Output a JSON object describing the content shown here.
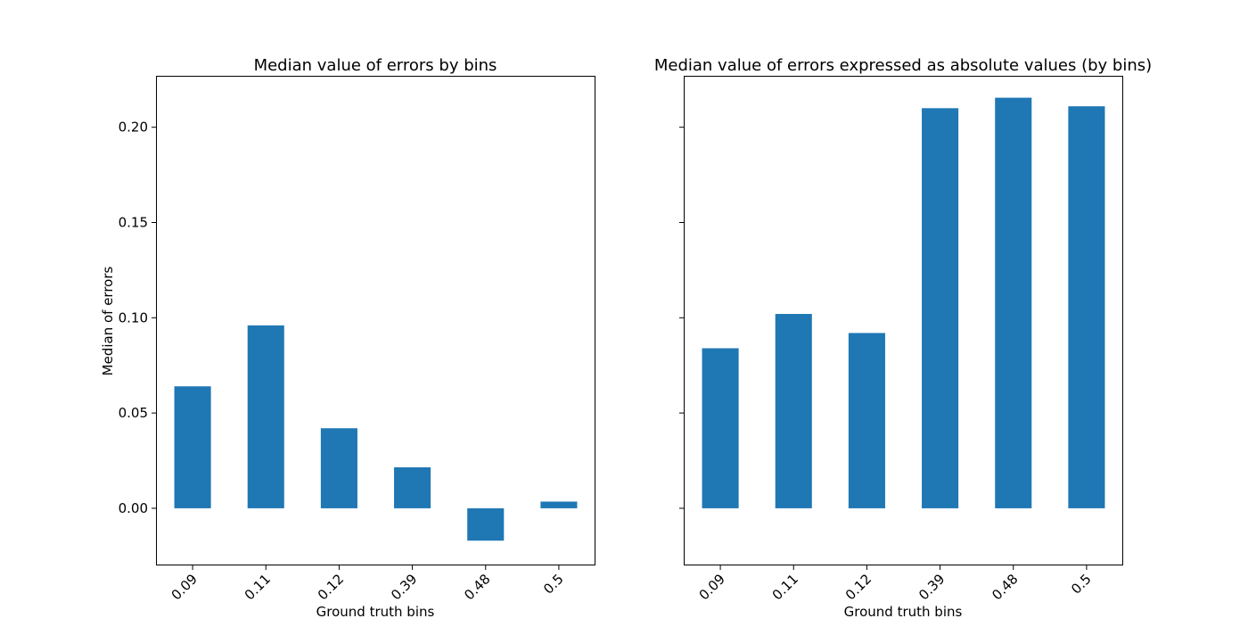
{
  "colors": {
    "bar": "#1f77b4",
    "axes": "#000000",
    "background": "#ffffff"
  },
  "chart_data": [
    {
      "type": "bar",
      "title": "Median value of errors by bins",
      "xlabel": "Ground truth bins",
      "ylabel": "Median of errors",
      "categories": [
        "0.09",
        "0.11",
        "0.12",
        "0.39",
        "0.48",
        "0.5"
      ],
      "values": [
        0.064,
        0.096,
        0.042,
        0.0215,
        -0.017,
        0.0035
      ],
      "ylim": [
        -0.03,
        0.227
      ],
      "yticks": [
        0.0,
        0.05,
        0.1,
        0.15,
        0.2
      ],
      "ytick_labels": [
        "0.00",
        "0.05",
        "0.10",
        "0.15",
        "0.20"
      ],
      "show_y_tick_labels": true,
      "grid": false,
      "legend": "none"
    },
    {
      "type": "bar",
      "title": "Median value of errors expressed as absolute values (by bins)",
      "xlabel": "Ground truth bins",
      "ylabel": "",
      "categories": [
        "0.09",
        "0.11",
        "0.12",
        "0.39",
        "0.48",
        "0.5"
      ],
      "values": [
        0.084,
        0.102,
        0.092,
        0.21,
        0.2155,
        0.211
      ],
      "ylim": [
        -0.03,
        0.227
      ],
      "yticks": [
        0.0,
        0.05,
        0.1,
        0.15,
        0.2
      ],
      "ytick_labels": [
        "0.00",
        "0.05",
        "0.10",
        "0.15",
        "0.20"
      ],
      "show_y_tick_labels": false,
      "grid": false,
      "legend": "none"
    }
  ]
}
